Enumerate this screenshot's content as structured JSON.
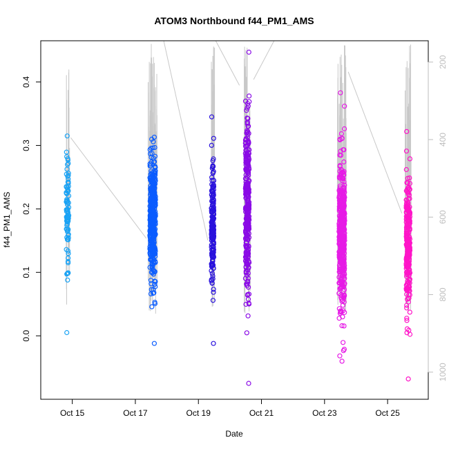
{
  "chart_data": {
    "type": "scatter",
    "title": "ATOM3 Northbound f44_PM1_AMS",
    "xlabel": "Date",
    "ylabel": "f44_PM1_AMS",
    "x_ticks": [
      "Oct 15",
      "Oct 17",
      "Oct 19",
      "Oct 21",
      "Oct 23",
      "Oct 25"
    ],
    "y_ticks": [
      "0.0",
      "0.1",
      "0.2",
      "0.3",
      "0.4"
    ],
    "y_tick_values": [
      0.0,
      0.1,
      0.2,
      0.3,
      0.4
    ],
    "ylim": [
      -0.1,
      0.465
    ],
    "xlim": [
      "Oct 14 00:00",
      "Oct 26 07:00"
    ],
    "y2_ticks": [
      "200",
      "400",
      "600",
      "800",
      "1000"
    ],
    "y2_tick_values": [
      200,
      400,
      600,
      800,
      1000
    ],
    "y2lim": [
      1070,
      145
    ],
    "y2_series": "secondary altitude profile (grey lines)",
    "grid": false,
    "marker": "open-circle",
    "clusters": [
      {
        "date": "Oct 14",
        "x_center": 0.85,
        "x_spread": 0.08,
        "y_min": 0.005,
        "y_max": 0.315,
        "y_center": 0.19,
        "n": 90,
        "color": "#1aa3f5"
      },
      {
        "date": "Oct 17",
        "x_center": 3.55,
        "x_spread": 0.18,
        "y_min": -0.012,
        "y_max": 0.313,
        "y_center": 0.185,
        "n": 420,
        "color": "#0a5cff"
      },
      {
        "date": "Oct 19",
        "x_center": 5.45,
        "x_spread": 0.08,
        "y_min": -0.012,
        "y_max": 0.345,
        "y_center": 0.17,
        "n": 180,
        "color": "#2a12dd"
      },
      {
        "date": "Oct 20",
        "x_center": 6.55,
        "x_spread": 0.12,
        "y_min": -0.075,
        "y_max": 0.447,
        "y_center": 0.2,
        "n": 320,
        "color": "#8a0ae6"
      },
      {
        "date": "Oct 23",
        "x_center": 9.55,
        "x_spread": 0.18,
        "y_min": -0.04,
        "y_max": 0.383,
        "y_center": 0.16,
        "n": 420,
        "color": "#e61ae6"
      },
      {
        "date": "Oct 25",
        "x_center": 11.65,
        "x_spread": 0.12,
        "y_min": -0.068,
        "y_max": 0.322,
        "y_center": 0.14,
        "n": 260,
        "color": "#ff14c8"
      }
    ]
  }
}
